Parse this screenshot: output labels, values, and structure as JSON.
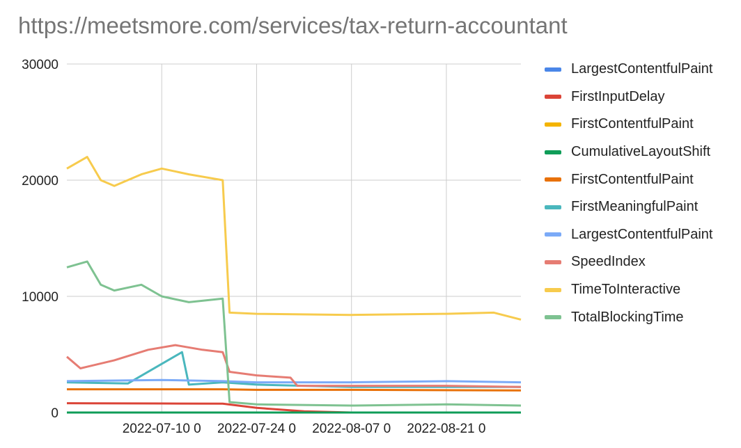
{
  "title": "https://meetsmore.com/services/tax-return-accountant",
  "chart_data": {
    "type": "line",
    "title": "https://meetsmore.com/services/tax-return-accountant",
    "xlabel": "",
    "ylabel": "",
    "x_range": [
      "2022-06-26",
      "2022-09-01"
    ],
    "x_ticks": [
      {
        "date": "2022-07-10",
        "label": "2022-07-10 0"
      },
      {
        "date": "2022-07-24",
        "label": "2022-07-24 0"
      },
      {
        "date": "2022-08-07",
        "label": "2022-08-07 0"
      },
      {
        "date": "2022-08-21",
        "label": "2022-08-21 0"
      }
    ],
    "ylim": [
      0,
      30000
    ],
    "y_ticks": [
      0,
      10000,
      20000,
      30000
    ],
    "y_tick_labels": [
      "0",
      "10000",
      "20000",
      "30000"
    ],
    "grid": true,
    "legend_position": "right",
    "series": [
      {
        "name": "LargestContentfulPaint",
        "color": "#4a86e8",
        "points": [
          [
            "2022-06-26",
            0
          ],
          [
            "2022-09-01",
            0
          ]
        ]
      },
      {
        "name": "FirstInputDelay",
        "color": "#db4437",
        "points": [
          [
            "2022-06-26",
            800
          ],
          [
            "2022-07-10",
            780
          ],
          [
            "2022-07-19",
            760
          ],
          [
            "2022-07-24",
            400
          ],
          [
            "2022-07-31",
            100
          ],
          [
            "2022-08-07",
            0
          ],
          [
            "2022-09-01",
            0
          ]
        ]
      },
      {
        "name": "FirstContentfulPaint",
        "color": "#f4b400",
        "points": [
          [
            "2022-06-26",
            0
          ],
          [
            "2022-09-01",
            0
          ]
        ]
      },
      {
        "name": "CumulativeLayoutShift",
        "color": "#0f9d58",
        "points": [
          [
            "2022-06-26",
            0
          ],
          [
            "2022-09-01",
            0
          ]
        ]
      },
      {
        "name": "FirstContentfulPaint",
        "color": "#e8710a",
        "points": [
          [
            "2022-06-26",
            2000
          ],
          [
            "2022-07-19",
            2000
          ],
          [
            "2022-07-24",
            1950
          ],
          [
            "2022-08-07",
            1950
          ],
          [
            "2022-09-01",
            1900
          ]
        ]
      },
      {
        "name": "FirstMeaningfulPaint",
        "color": "#4ab7bd",
        "points": [
          [
            "2022-06-26",
            2600
          ],
          [
            "2022-07-05",
            2500
          ],
          [
            "2022-07-13",
            5200
          ],
          [
            "2022-07-14",
            2400
          ],
          [
            "2022-07-19",
            2600
          ],
          [
            "2022-07-24",
            2400
          ],
          [
            "2022-08-07",
            2200
          ],
          [
            "2022-09-01",
            2200
          ]
        ]
      },
      {
        "name": "LargestContentfulPaint",
        "color": "#7baaf7",
        "points": [
          [
            "2022-06-26",
            2700
          ],
          [
            "2022-07-10",
            2800
          ],
          [
            "2022-07-19",
            2700
          ],
          [
            "2022-07-24",
            2600
          ],
          [
            "2022-08-07",
            2600
          ],
          [
            "2022-08-21",
            2700
          ],
          [
            "2022-09-01",
            2600
          ]
        ]
      },
      {
        "name": "SpeedIndex",
        "color": "#e67c73",
        "points": [
          [
            "2022-06-26",
            4800
          ],
          [
            "2022-06-28",
            3800
          ],
          [
            "2022-07-03",
            4500
          ],
          [
            "2022-07-08",
            5400
          ],
          [
            "2022-07-12",
            5800
          ],
          [
            "2022-07-16",
            5400
          ],
          [
            "2022-07-19",
            5200
          ],
          [
            "2022-07-20",
            3500
          ],
          [
            "2022-07-24",
            3200
          ],
          [
            "2022-07-29",
            3000
          ],
          [
            "2022-07-30",
            2300
          ],
          [
            "2022-08-07",
            2300
          ],
          [
            "2022-08-21",
            2300
          ],
          [
            "2022-09-01",
            2200
          ]
        ]
      },
      {
        "name": "TimeToInteractive",
        "color": "#f7cb4d",
        "points": [
          [
            "2022-06-26",
            21000
          ],
          [
            "2022-06-29",
            22000
          ],
          [
            "2022-07-01",
            20000
          ],
          [
            "2022-07-03",
            19500
          ],
          [
            "2022-07-07",
            20500
          ],
          [
            "2022-07-10",
            21000
          ],
          [
            "2022-07-14",
            20500
          ],
          [
            "2022-07-19",
            20000
          ],
          [
            "2022-07-20",
            8600
          ],
          [
            "2022-07-24",
            8500
          ],
          [
            "2022-08-07",
            8400
          ],
          [
            "2022-08-21",
            8500
          ],
          [
            "2022-08-28",
            8600
          ],
          [
            "2022-09-01",
            8000
          ]
        ]
      },
      {
        "name": "TotalBlockingTime",
        "color": "#7ec291",
        "points": [
          [
            "2022-06-26",
            12500
          ],
          [
            "2022-06-29",
            13000
          ],
          [
            "2022-07-01",
            11000
          ],
          [
            "2022-07-03",
            10500
          ],
          [
            "2022-07-07",
            11000
          ],
          [
            "2022-07-10",
            10000
          ],
          [
            "2022-07-14",
            9500
          ],
          [
            "2022-07-19",
            9800
          ],
          [
            "2022-07-20",
            900
          ],
          [
            "2022-07-24",
            700
          ],
          [
            "2022-08-07",
            600
          ],
          [
            "2022-08-21",
            700
          ],
          [
            "2022-09-01",
            600
          ]
        ]
      }
    ]
  }
}
